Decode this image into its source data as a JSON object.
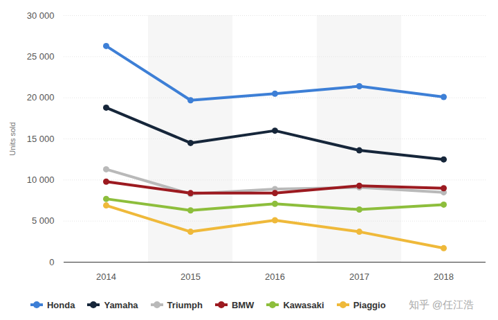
{
  "chart_data": {
    "type": "line",
    "y_label": "Units sold",
    "x": [
      2014,
      2015,
      2016,
      2017,
      2018
    ],
    "xlim": [
      2013.5,
      2018.5
    ],
    "xticks": [
      2014,
      2015,
      2016,
      2017,
      2018
    ],
    "ylim": [
      0,
      30000
    ],
    "yticks": [
      0,
      {
        "value": 5000,
        "label": "5 000"
      },
      {
        "value": 10000,
        "label": "10 000"
      },
      {
        "value": 15000,
        "label": "15 000"
      },
      {
        "value": 20000,
        "label": "20 000"
      },
      {
        "value": 25000,
        "label": "25 000"
      },
      {
        "value": 30000,
        "label": "30 000"
      }
    ],
    "grid": true,
    "legend": "bottom",
    "marker": "circle",
    "series": [
      {
        "name": "Honda",
        "color": "#3d7fd6",
        "values": [
          26300,
          19700,
          20500,
          21400,
          20100
        ]
      },
      {
        "name": "Yamaha",
        "color": "#16263a",
        "values": [
          18800,
          14500,
          16000,
          13600,
          12500
        ]
      },
      {
        "name": "Triumph",
        "color": "#b9b9b9",
        "values": [
          11300,
          8300,
          8900,
          9100,
          8500
        ]
      },
      {
        "name": "BMW",
        "color": "#9c1a20",
        "values": [
          9800,
          8400,
          8400,
          9300,
          9000
        ]
      },
      {
        "name": "Kawasaki",
        "color": "#8dbe3c",
        "values": [
          7700,
          6300,
          7100,
          6400,
          7000
        ]
      },
      {
        "name": "Piaggio",
        "color": "#efb93a",
        "values": [
          6900,
          3700,
          5100,
          3700,
          1700
        ]
      }
    ],
    "annotations": [
      "知乎 @任江浩"
    ]
  }
}
